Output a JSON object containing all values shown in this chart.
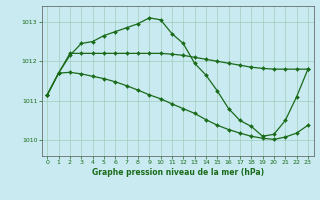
{
  "title": "Graphe pression niveau de la mer (hPa)",
  "bg_color": "#c8eaf0",
  "grid_color": "#a0ccbb",
  "line_color": "#1a6b1a",
  "spine_color": "#555555",
  "xlim": [
    -0.5,
    23.5
  ],
  "ylim": [
    1009.6,
    1013.4
  ],
  "yticks": [
    1010,
    1011,
    1012,
    1013
  ],
  "xticks": [
    0,
    1,
    2,
    3,
    4,
    5,
    6,
    7,
    8,
    9,
    10,
    11,
    12,
    13,
    14,
    15,
    16,
    17,
    18,
    19,
    20,
    21,
    22,
    23
  ],
  "series1_x": [
    0,
    1,
    2,
    3,
    4,
    5,
    6,
    7,
    8,
    9,
    10,
    11,
    12,
    13,
    14,
    15,
    16,
    17,
    18,
    19,
    20,
    21,
    22,
    23
  ],
  "series1_y": [
    1011.15,
    1011.7,
    1012.15,
    1012.45,
    1012.5,
    1012.65,
    1012.75,
    1012.85,
    1012.95,
    1013.1,
    1013.05,
    1012.7,
    1012.45,
    1011.95,
    1011.65,
    1011.25,
    1010.8,
    1010.5,
    1010.35,
    1010.1,
    1010.15,
    1010.5,
    1011.1,
    1011.8
  ],
  "series2_x": [
    0,
    1,
    2,
    3,
    4,
    5,
    6,
    7,
    8,
    9,
    10,
    11,
    12,
    13,
    14,
    15,
    16,
    17,
    18,
    19,
    20,
    21,
    22,
    23
  ],
  "series2_y": [
    1011.15,
    1011.7,
    1012.2,
    1012.2,
    1012.2,
    1012.2,
    1012.2,
    1012.2,
    1012.2,
    1012.2,
    1012.2,
    1012.18,
    1012.15,
    1012.1,
    1012.05,
    1012.0,
    1011.95,
    1011.9,
    1011.85,
    1011.82,
    1011.8,
    1011.8,
    1011.8,
    1011.8
  ],
  "series3_x": [
    0,
    1,
    2,
    3,
    4,
    5,
    6,
    7,
    8,
    9,
    10,
    11,
    12,
    13,
    14,
    15,
    16,
    17,
    18,
    19,
    20,
    21,
    22,
    23
  ],
  "series3_y": [
    1011.15,
    1011.7,
    1011.72,
    1011.68,
    1011.62,
    1011.56,
    1011.48,
    1011.38,
    1011.27,
    1011.15,
    1011.05,
    1010.92,
    1010.8,
    1010.68,
    1010.52,
    1010.38,
    1010.27,
    1010.18,
    1010.1,
    1010.05,
    1010.02,
    1010.08,
    1010.18,
    1010.38
  ]
}
